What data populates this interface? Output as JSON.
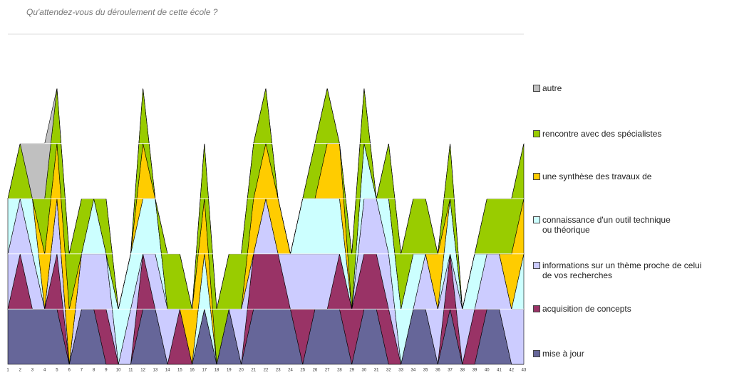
{
  "chart_data": {
    "type": "stacked_area",
    "title": "Qu'attendez-vous du déroulement de cette école ?",
    "categories": [
      "1",
      "2",
      "3",
      "4",
      "5",
      "6",
      "7",
      "8",
      "9",
      "10",
      "11",
      "12",
      "13",
      "14",
      "15",
      "16",
      "17",
      "18",
      "19",
      "20",
      "21",
      "22",
      "23",
      "24",
      "25",
      "26",
      "27",
      "28",
      "29",
      "30",
      "31",
      "32",
      "33",
      "34",
      "35",
      "36",
      "37",
      "38",
      "39",
      "40",
      "41",
      "42",
      "43"
    ],
    "ylim": [
      0,
      5
    ],
    "yticks": [
      1,
      2,
      3,
      4,
      5
    ],
    "grid": true,
    "series": [
      {
        "name": "mise à jour",
        "color": "#666699",
        "values": [
          1,
          1,
          1,
          1,
          1,
          0,
          1,
          1,
          0,
          0,
          0,
          1,
          1,
          0,
          0,
          0,
          1,
          0,
          1,
          0,
          1,
          1,
          1,
          1,
          0,
          1,
          1,
          1,
          0,
          1,
          1,
          0,
          0,
          1,
          1,
          0,
          1,
          0,
          0,
          1,
          1,
          0,
          0
        ]
      },
      {
        "name": "acquisition de concepts",
        "color": "#993366",
        "values": [
          0,
          1,
          0,
          0,
          1,
          0,
          0,
          0,
          1,
          0,
          0,
          1,
          0,
          0,
          1,
          0,
          0,
          0,
          0,
          0,
          1,
          1,
          1,
          0,
          1,
          0,
          0,
          1,
          1,
          1,
          1,
          1,
          0,
          0,
          0,
          0,
          1,
          0,
          1,
          0,
          0,
          0,
          0
        ]
      },
      {
        "name": "informations sur un thème proche de celui\nde vos recherches",
        "color": "#ccccff",
        "values": [
          1,
          1,
          1,
          0,
          1,
          0,
          1,
          1,
          1,
          0,
          1,
          0,
          1,
          1,
          0,
          0,
          0,
          0,
          0,
          1,
          0,
          1,
          0,
          1,
          1,
          1,
          1,
          0,
          0,
          1,
          1,
          1,
          0,
          0,
          1,
          1,
          0,
          1,
          0,
          1,
          1,
          1,
          1
        ]
      },
      {
        "name": "connaissance d'un outil technique\nou théorique",
        "color": "#ccffff",
        "values": [
          1,
          0,
          1,
          0,
          0,
          0,
          0,
          1,
          0,
          1,
          1,
          1,
          1,
          0,
          0,
          0,
          1,
          0,
          0,
          0,
          0,
          0,
          0,
          0,
          1,
          1,
          1,
          1,
          0,
          1,
          0,
          1,
          1,
          1,
          0,
          0,
          1,
          0,
          1,
          0,
          0,
          0,
          1
        ]
      },
      {
        "name": "une synthèse des travaux de",
        "color": "#ffcc00",
        "values": [
          0,
          0,
          0,
          1,
          1,
          1,
          0,
          0,
          0,
          0,
          0,
          1,
          0,
          0,
          0,
          1,
          1,
          0,
          0,
          0,
          1,
          1,
          1,
          0,
          0,
          0,
          1,
          1,
          0,
          0,
          0,
          0,
          0,
          0,
          0,
          1,
          0,
          0,
          0,
          0,
          0,
          1,
          1
        ]
      },
      {
        "name": "rencontre avec des spécialistes",
        "color": "#99cc00",
        "values": [
          0,
          1,
          0,
          1,
          1,
          1,
          1,
          0,
          1,
          0,
          0,
          1,
          0,
          1,
          1,
          0,
          1,
          1,
          1,
          1,
          1,
          1,
          0,
          0,
          0,
          1,
          1,
          0,
          1,
          1,
          0,
          1,
          1,
          1,
          1,
          0,
          1,
          0,
          0,
          1,
          1,
          1,
          1
        ]
      },
      {
        "name": "autre",
        "color": "#c0c0c0",
        "values": [
          0,
          0,
          1,
          1,
          0,
          0,
          0,
          0,
          0,
          0,
          0,
          0,
          0,
          0,
          0,
          0,
          0,
          0,
          0,
          0,
          0,
          0,
          0,
          0,
          0,
          0,
          0,
          0,
          0,
          0,
          0,
          0,
          0,
          0,
          0,
          0,
          0,
          0,
          0,
          0,
          0,
          0,
          0
        ]
      }
    ]
  }
}
